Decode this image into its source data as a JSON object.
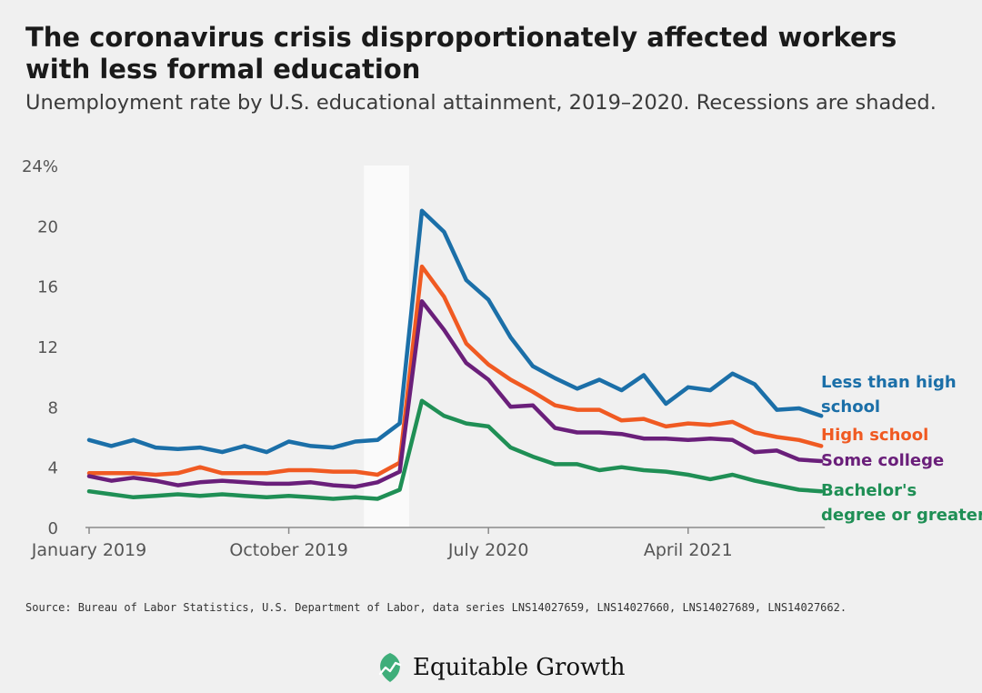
{
  "title": "The coronavirus crisis disproportionately affected workers with less formal education",
  "subtitle": "Unemployment rate by U.S. educational attainment, 2019–2020. Recessions are shaded.",
  "source": "Source: Bureau of Labor Statistics, U.S. Department of Labor, data series LNS14027659, LNS14027660, LNS14027689, LNS14027662.",
  "logo": {
    "name": "Equitable Growth",
    "icon": "equitable-growth-leaf-icon",
    "color": "#3fae7a"
  },
  "chart_data": {
    "type": "line",
    "title": "The coronavirus crisis disproportionately affected workers with less formal education",
    "subtitle": "Unemployment rate by U.S. educational attainment, 2019–2020. Recessions are shaded.",
    "xlabel": "",
    "ylabel": "",
    "x_range": [
      "2019-01",
      "2021-10"
    ],
    "x_ticks": [
      {
        "date": "2019-01",
        "label": "January 2019"
      },
      {
        "date": "2019-10",
        "label": "October 2019"
      },
      {
        "date": "2020-07",
        "label": "July 2020"
      },
      {
        "date": "2021-04",
        "label": "April 2021"
      }
    ],
    "ylim": [
      0,
      24
    ],
    "y_ticks": [
      {
        "value": 0,
        "label": "0"
      },
      {
        "value": 4,
        "label": "4"
      },
      {
        "value": 8,
        "label": "8"
      },
      {
        "value": 12,
        "label": "12"
      },
      {
        "value": 16,
        "label": "16"
      },
      {
        "value": 20,
        "label": "20"
      },
      {
        "value": 24,
        "label": "24%"
      }
    ],
    "grid": false,
    "recession_shading": {
      "start": "2020-02",
      "end": "2020-04",
      "color": "#fafafa"
    },
    "x": [
      "2019-01",
      "2019-02",
      "2019-03",
      "2019-04",
      "2019-05",
      "2019-06",
      "2019-07",
      "2019-08",
      "2019-09",
      "2019-10",
      "2019-11",
      "2019-12",
      "2020-01",
      "2020-02",
      "2020-03",
      "2020-04",
      "2020-05",
      "2020-06",
      "2020-07",
      "2020-08",
      "2020-09",
      "2020-10",
      "2020-11",
      "2020-12",
      "2021-01",
      "2021-02",
      "2021-03",
      "2021-04",
      "2021-05",
      "2021-06",
      "2021-07",
      "2021-08",
      "2021-09",
      "2021-10"
    ],
    "series": [
      {
        "name": "Less than high school",
        "color": "#1b6fa8",
        "values": [
          5.8,
          5.4,
          5.8,
          5.3,
          5.2,
          5.3,
          5.0,
          5.4,
          5.0,
          5.7,
          5.4,
          5.3,
          5.7,
          5.8,
          6.9,
          21.0,
          19.6,
          16.4,
          15.1,
          12.6,
          10.7,
          9.9,
          9.2,
          9.8,
          9.1,
          10.1,
          8.2,
          9.3,
          9.1,
          10.2,
          9.5,
          7.8,
          7.9,
          7.4
        ]
      },
      {
        "name": "High school",
        "color": "#f05a22",
        "values": [
          3.6,
          3.6,
          3.6,
          3.5,
          3.6,
          4.0,
          3.6,
          3.6,
          3.6,
          3.8,
          3.8,
          3.7,
          3.7,
          3.5,
          4.3,
          17.3,
          15.3,
          12.2,
          10.8,
          9.8,
          9.0,
          8.1,
          7.8,
          7.8,
          7.1,
          7.2,
          6.7,
          6.9,
          6.8,
          7.0,
          6.3,
          6.0,
          5.8,
          5.4
        ]
      },
      {
        "name": "Some college",
        "color": "#6a1f7a",
        "values": [
          3.4,
          3.1,
          3.3,
          3.1,
          2.8,
          3.0,
          3.1,
          3.0,
          2.9,
          2.9,
          3.0,
          2.8,
          2.7,
          3.0,
          3.7,
          15.0,
          13.1,
          10.9,
          9.8,
          8.0,
          8.1,
          6.6,
          6.3,
          6.3,
          6.2,
          5.9,
          5.9,
          5.8,
          5.9,
          5.8,
          5.0,
          5.1,
          4.5,
          4.4
        ]
      },
      {
        "name": "Bachelor's degree or greater",
        "color": "#1f8f55",
        "values": [
          2.4,
          2.2,
          2.0,
          2.1,
          2.2,
          2.1,
          2.2,
          2.1,
          2.0,
          2.1,
          2.0,
          1.9,
          2.0,
          1.9,
          2.5,
          8.4,
          7.4,
          6.9,
          6.7,
          5.3,
          4.7,
          4.2,
          4.2,
          3.8,
          4.0,
          3.8,
          3.7,
          3.5,
          3.2,
          3.5,
          3.1,
          2.8,
          2.5,
          2.4
        ]
      }
    ],
    "series_labels": [
      {
        "lines": [
          "Less than high",
          "school"
        ]
      },
      {
        "lines": [
          "High school"
        ]
      },
      {
        "lines": [
          "Some college"
        ]
      },
      {
        "lines": [
          "Bachelor's",
          "degree or greater"
        ]
      }
    ]
  }
}
